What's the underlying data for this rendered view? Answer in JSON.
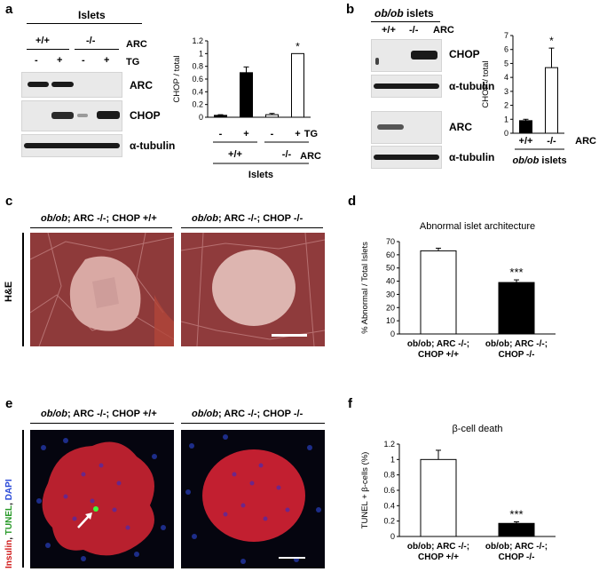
{
  "panels": {
    "a": "a",
    "b": "b",
    "c": "c",
    "d": "d",
    "e": "e",
    "f": "f"
  },
  "panel_a": {
    "header": "Islets",
    "genotype_wt": "+/+",
    "genotype_ko": "-/-",
    "arc_label": "ARC",
    "tg_label": "TG",
    "tg_minus": "-",
    "tg_plus": "+",
    "blot_labels": [
      "ARC",
      "CHOP",
      "α-tubulin"
    ]
  },
  "panel_b": {
    "header_italic": "ob/ob",
    "header_rest": " islets",
    "genotype_wt": "+/+",
    "genotype_ko": "-/-",
    "arc_label": "ARC",
    "blot_labels": [
      "CHOP",
      "α-tubulin",
      "ARC",
      "α-tubulin"
    ]
  },
  "panel_c": {
    "title_left_italic": "ob/ob",
    "title_left_rest": "; ARC -/-; CHOP +/+",
    "title_right_italic": "ob/ob",
    "title_right_rest": "; ARC -/-; CHOP -/-",
    "side_label": "H&E"
  },
  "panel_e": {
    "title_left_italic": "ob/ob",
    "title_left_rest": "; ARC -/-; CHOP +/+",
    "title_right_italic": "ob/ob",
    "title_right_rest": "; ARC -/-; CHOP -/-",
    "side_label_insulin": "Insulin",
    "side_label_tunel": "TUNEL",
    "side_label_dapi": "DAPI",
    "side_sep": ", "
  },
  "chart_data": [
    {
      "id": "a",
      "type": "bar",
      "categories": [
        "- / +/+",
        "+ / +/+",
        "- / -/-",
        "+ / -/-"
      ],
      "x_tick_tg": [
        "-",
        "+",
        "-",
        "+"
      ],
      "x_group_labels": [
        "+/+",
        "-/-"
      ],
      "x_row_labels": [
        "TG",
        "ARC"
      ],
      "x_footer": "Islets",
      "values": [
        0.03,
        0.7,
        0.04,
        1.0
      ],
      "errors": [
        0.01,
        0.09,
        0.02,
        0.0
      ],
      "fills": [
        "#000000",
        "#000000",
        "#ffffff",
        "#ffffff"
      ],
      "annotations": [
        "",
        "",
        "",
        "*"
      ],
      "ylabel": "CHOP / total",
      "ylim": [
        0,
        1.2
      ],
      "yticks": [
        "0",
        "0.2",
        "0.4",
        "0.6",
        "0.8",
        "1",
        "1.2"
      ],
      "grid": false
    },
    {
      "id": "b",
      "type": "bar",
      "categories": [
        "+/+",
        "-/-"
      ],
      "x_row_label": "ARC",
      "x_footer_italic": "ob/ob",
      "x_footer_rest": " islets",
      "values": [
        0.9,
        4.7
      ],
      "errors": [
        0.1,
        1.4
      ],
      "fills": [
        "#000000",
        "#ffffff"
      ],
      "annotations": [
        "",
        "*"
      ],
      "ylabel": "CHOP / total",
      "ylim": [
        0,
        7
      ],
      "yticks": [
        "0",
        "1",
        "2",
        "3",
        "4",
        "5",
        "6",
        "7"
      ],
      "grid": false
    },
    {
      "id": "d",
      "type": "bar",
      "title": "Abnormal islet architecture",
      "categories": [
        [
          "ob/ob; ARC -/-;",
          "CHOP +/+"
        ],
        [
          "ob/ob; ARC -/-;",
          "CHOP -/-"
        ]
      ],
      "values": [
        63,
        39
      ],
      "errors": [
        2,
        2
      ],
      "fills": [
        "#ffffff",
        "#000000"
      ],
      "annotations": [
        "",
        "***"
      ],
      "ylabel": "% Abnormal / Total Islets",
      "ylim": [
        0,
        70
      ],
      "yticks": [
        "0",
        "10",
        "20",
        "30",
        "40",
        "50",
        "60",
        "70"
      ],
      "grid": false
    },
    {
      "id": "f",
      "type": "bar",
      "title": "β-cell death",
      "categories": [
        [
          "ob/ob; ARC -/-;",
          "CHOP +/+"
        ],
        [
          "ob/ob; ARC -/-;",
          "CHOP -/-"
        ]
      ],
      "values": [
        1.0,
        0.17
      ],
      "errors": [
        0.12,
        0.02
      ],
      "fills": [
        "#ffffff",
        "#000000"
      ],
      "annotations": [
        "",
        "***"
      ],
      "ylabel": "TUNEL + β-cells (%)",
      "ylim": [
        0,
        1.2
      ],
      "yticks": [
        "0",
        "0.2",
        "0.4",
        "0.6",
        "0.8",
        "1",
        "1.2"
      ],
      "grid": false
    }
  ]
}
